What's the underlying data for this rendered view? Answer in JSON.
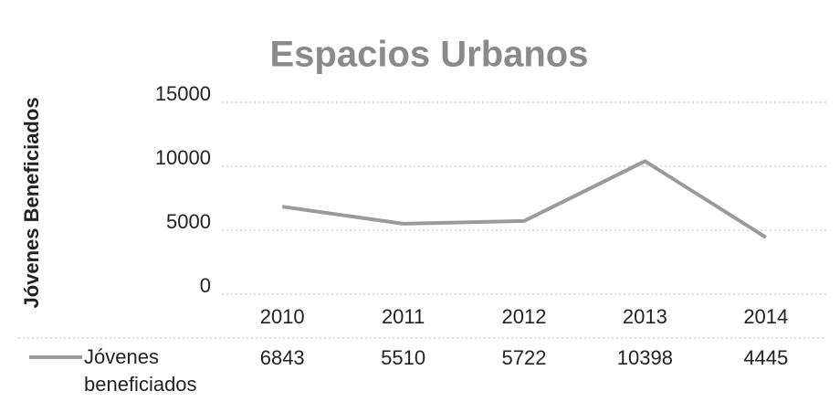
{
  "chart_data": {
    "type": "line",
    "title": "Espacios Urbanos",
    "y_label": "Jóvenes Beneficiados",
    "categories": [
      "2010",
      "2011",
      "2012",
      "2013",
      "2014"
    ],
    "series": [
      {
        "name": "Jóvenes beneficiados",
        "color": "#9a9a9a",
        "values": [
          6843,
          5510,
          5722,
          10398,
          4445
        ]
      }
    ],
    "ylim": [
      0,
      15000
    ],
    "yticks": [
      0,
      5000,
      10000,
      15000
    ],
    "grid": true
  }
}
